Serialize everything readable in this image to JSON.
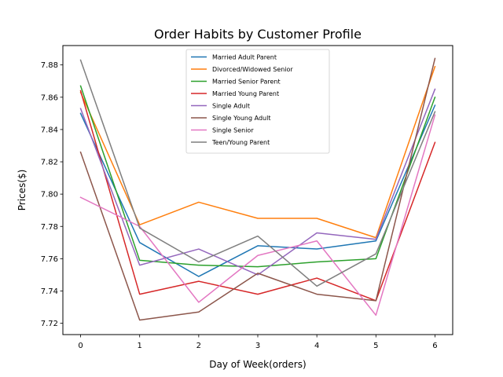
{
  "chart_data": {
    "type": "line",
    "title": "Order Habits by Customer Profile",
    "xlabel": "Day of Week(orders)",
    "ylabel": "Prices($)",
    "x": [
      0,
      1,
      2,
      3,
      4,
      5,
      6
    ],
    "xlim": [
      -0.3,
      6.3
    ],
    "ylim": [
      7.713,
      7.892
    ],
    "xticks": [
      "0",
      "1",
      "2",
      "3",
      "4",
      "5",
      "6"
    ],
    "yticks": [
      7.72,
      7.74,
      7.76,
      7.78,
      7.8,
      7.82,
      7.84,
      7.86,
      7.88
    ],
    "ytick_labels": [
      "7.72",
      "7.74",
      "7.76",
      "7.78",
      "7.80",
      "7.82",
      "7.84",
      "7.86",
      "7.88"
    ],
    "grid": false,
    "legend_position": "top-center",
    "series": [
      {
        "name": "Married Adult Parent",
        "color": "#1f77b4",
        "values": [
          7.85,
          7.77,
          7.749,
          7.768,
          7.766,
          7.771,
          7.855
        ]
      },
      {
        "name": "Divorced/Widowed Senior",
        "color": "#ff7f0e",
        "values": [
          7.863,
          7.781,
          7.795,
          7.785,
          7.785,
          7.773,
          7.879
        ]
      },
      {
        "name": "Married Senior Parent",
        "color": "#2ca02c",
        "values": [
          7.867,
          7.759,
          7.756,
          7.755,
          7.758,
          7.76,
          7.86
        ]
      },
      {
        "name": "Married Young Parent",
        "color": "#d62728",
        "values": [
          7.864,
          7.738,
          7.746,
          7.738,
          7.748,
          7.734,
          7.832
        ]
      },
      {
        "name": "Single Adult",
        "color": "#9467bd",
        "values": [
          7.853,
          7.756,
          7.766,
          7.75,
          7.776,
          7.772,
          7.865
        ]
      },
      {
        "name": "Single Young Adult",
        "color": "#8c564b",
        "values": [
          7.826,
          7.722,
          7.727,
          7.751,
          7.738,
          7.734,
          7.884
        ]
      },
      {
        "name": "Single Senior",
        "color": "#e377c2",
        "values": [
          7.798,
          7.78,
          7.733,
          7.762,
          7.771,
          7.725,
          7.849
        ]
      },
      {
        "name": "Teen/Young Parent",
        "color": "#7f7f7f",
        "values": [
          7.883,
          7.779,
          7.758,
          7.774,
          7.743,
          7.763,
          7.851
        ]
      }
    ]
  }
}
